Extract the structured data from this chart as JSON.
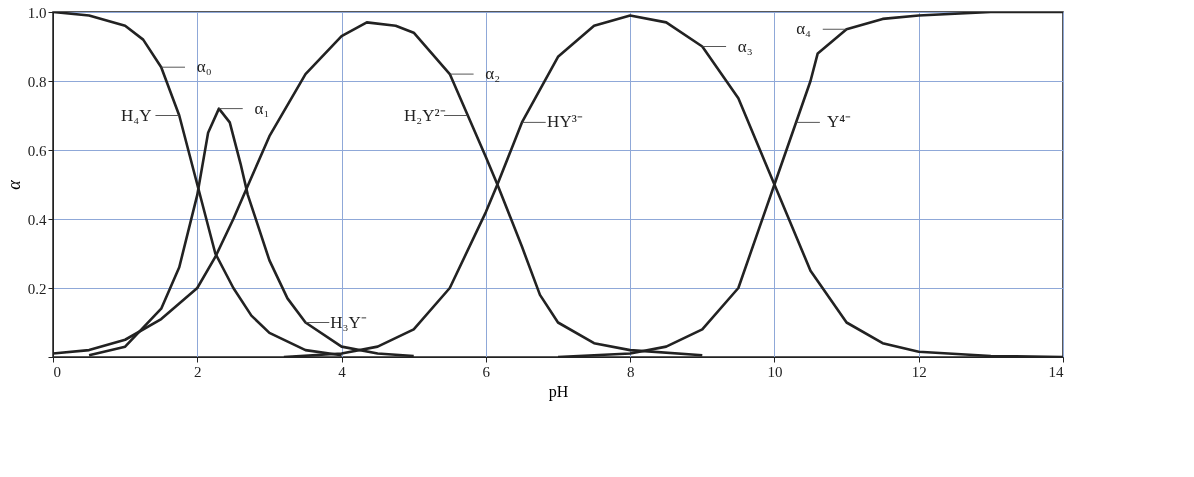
{
  "chart_data": {
    "type": "line",
    "xlabel": "pH",
    "ylabel": "α",
    "xlim": [
      0,
      14
    ],
    "ylim": [
      0,
      1
    ],
    "xticks": [
      {
        "value": 0,
        "label": "0"
      },
      {
        "value": 2,
        "label": "2"
      },
      {
        "value": 4,
        "label": "4"
      },
      {
        "value": 6,
        "label": "6"
      },
      {
        "value": 8,
        "label": "8"
      },
      {
        "value": 10,
        "label": "10"
      },
      {
        "value": 12,
        "label": "12"
      },
      {
        "value": 14,
        "label": "14"
      }
    ],
    "yticks": [
      {
        "value": 0,
        "label": null
      },
      0.2,
      0.4,
      0.6,
      0.8,
      {
        "value": 1,
        "label": "1.0"
      }
    ],
    "grid": true,
    "legend": false,
    "marker": "none",
    "line_style": "solid",
    "series": [
      {
        "color": "#222222",
        "x": [
          0,
          0.5,
          1,
          1.25,
          1.5,
          1.75,
          2,
          2.25,
          2.5,
          2.75,
          3,
          3.5,
          4
        ],
        "values": [
          1.0,
          0.99,
          0.96,
          0.92,
          0.84,
          0.7,
          0.5,
          0.3,
          0.2,
          0.12,
          0.07,
          0.02,
          0.005
        ]
      },
      {
        "color": "#222222",
        "x": [
          0.5,
          1,
          1.5,
          1.75,
          2,
          2.15,
          2.3,
          2.45,
          2.6,
          2.7,
          3,
          3.25,
          3.5,
          4,
          4.5,
          5
        ],
        "values": [
          0.005,
          0.03,
          0.14,
          0.26,
          0.47,
          0.65,
          0.72,
          0.68,
          0.56,
          0.47,
          0.28,
          0.17,
          0.1,
          0.03,
          0.01,
          0.003
        ]
      },
      {
        "color": "#222222",
        "x": [
          0,
          0.5,
          1,
          1.5,
          2,
          2.25,
          2.5,
          2.75,
          3,
          3.5,
          4,
          4.35,
          4.75,
          5,
          5.5,
          5.75,
          6,
          6.16,
          6.5,
          6.75,
          7,
          7.5,
          8,
          9
        ],
        "values": [
          0.01,
          0.02,
          0.05,
          0.11,
          0.2,
          0.29,
          0.4,
          0.52,
          0.64,
          0.82,
          0.93,
          0.97,
          0.96,
          0.94,
          0.82,
          0.7,
          0.58,
          0.5,
          0.32,
          0.18,
          0.1,
          0.04,
          0.02,
          0.005
        ]
      },
      {
        "color": "#222222",
        "x": [
          3.2,
          4,
          4.5,
          5,
          5.5,
          6,
          6.16,
          6.5,
          7,
          7.5,
          8,
          8.5,
          9,
          9.5,
          10,
          10.5,
          11,
          11.5,
          12,
          13,
          14
        ],
        "values": [
          0,
          0.01,
          0.03,
          0.08,
          0.2,
          0.42,
          0.5,
          0.68,
          0.87,
          0.96,
          0.99,
          0.97,
          0.9,
          0.75,
          0.5,
          0.25,
          0.1,
          0.04,
          0.015,
          0.003,
          0
        ]
      },
      {
        "color": "#222222",
        "x": [
          7,
          7.5,
          8,
          8.5,
          9,
          9.5,
          10,
          10.5,
          10.6,
          11,
          11.5,
          12,
          13,
          14
        ],
        "values": [
          0,
          0.005,
          0.01,
          0.03,
          0.08,
          0.2,
          0.5,
          0.8,
          0.88,
          0.95,
          0.98,
          0.99,
          1.0,
          1.0
        ]
      }
    ],
    "annotations": [
      {
        "text": "α₀",
        "x": 1.5,
        "y": 0.84
      },
      {
        "text": "α₁",
        "x": 2.3,
        "y": 0.72
      },
      {
        "text": "α₂",
        "x": 5.5,
        "y": 0.82
      },
      {
        "text": "α₃",
        "x": 9,
        "y": 0.9
      },
      {
        "text": "α₄",
        "x": 11,
        "y": 0.95
      },
      {
        "text": "H₄Y",
        "x": 1.75,
        "y": 0.7
      },
      {
        "text": "H₂Y²⁻",
        "x": 5.75,
        "y": 0.7
      },
      {
        "text": "HY³⁻",
        "x": 6.5,
        "y": 0.68
      },
      {
        "text": "Y⁴⁻",
        "x": 10.3,
        "y": 0.68
      },
      {
        "text": "H₃Y⁻",
        "x": 3.5,
        "y": 0.1
      }
    ]
  }
}
